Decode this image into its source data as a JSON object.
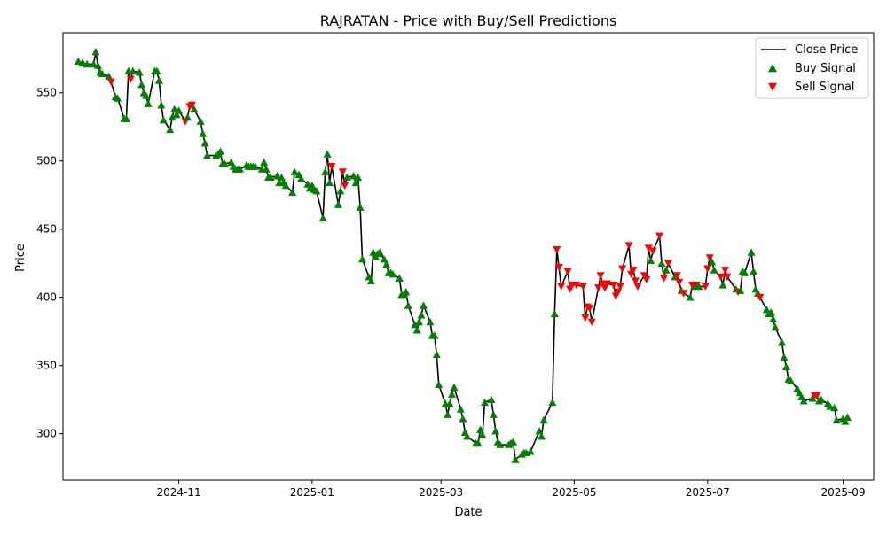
{
  "chart_data": {
    "type": "line",
    "title": "RAJRATAN - Price with Buy/Sell Predictions",
    "xlabel": "Date",
    "ylabel": "Price",
    "xlim": [
      "2024-09-09",
      "2025-09-15"
    ],
    "ylim": [
      266,
      594
    ],
    "x_ticks": [
      {
        "date": "2024-11-01",
        "label": "2024-11"
      },
      {
        "date": "2025-01-01",
        "label": "2025-01"
      },
      {
        "date": "2025-03-01",
        "label": "2025-03"
      },
      {
        "date": "2025-05-01",
        "label": "2025-05"
      },
      {
        "date": "2025-07-01",
        "label": "2025-07"
      },
      {
        "date": "2025-09-01",
        "label": "2025-09"
      }
    ],
    "y_ticks": [
      300,
      350,
      400,
      450,
      500,
      550
    ],
    "grid": false,
    "legend_position": "upper right",
    "series": [
      {
        "name": "Close Price",
        "color": "#000000"
      },
      {
        "name": "Buy Signal",
        "color": "#008000"
      },
      {
        "name": "Sell Signal",
        "color": "#ff0000"
      }
    ],
    "points": [
      [
        "2024-09-16",
        573,
        "B"
      ],
      [
        "2024-09-18",
        572,
        "B"
      ],
      [
        "2024-09-20",
        571,
        "B"
      ],
      [
        "2024-09-23",
        571,
        "B"
      ],
      [
        "2024-09-24",
        580,
        "B"
      ],
      [
        "2024-09-25",
        570,
        "B"
      ],
      [
        "2024-09-26",
        565,
        "B"
      ],
      [
        "2024-09-27",
        564,
        "B"
      ],
      [
        "2024-09-30",
        562,
        "B"
      ],
      [
        "2024-10-01",
        558,
        "S"
      ],
      [
        "2024-10-03",
        547,
        "B"
      ],
      [
        "2024-10-04",
        546,
        "B"
      ],
      [
        "2024-10-07",
        531,
        "B"
      ],
      [
        "2024-10-08",
        531,
        "B"
      ],
      [
        "2024-10-09",
        566,
        "B"
      ],
      [
        "2024-10-10",
        560,
        "S"
      ],
      [
        "2024-10-11",
        566,
        "B"
      ],
      [
        "2024-10-14",
        565,
        "B"
      ],
      [
        "2024-10-15",
        556,
        "B"
      ],
      [
        "2024-10-16",
        550,
        "B"
      ],
      [
        "2024-10-17",
        548,
        "B"
      ],
      [
        "2024-10-18",
        542,
        "B"
      ],
      [
        "2024-10-21",
        566,
        "B"
      ],
      [
        "2024-10-22",
        566,
        "B"
      ],
      [
        "2024-10-23",
        559,
        "B"
      ],
      [
        "2024-10-24",
        541,
        "B"
      ],
      [
        "2024-10-25",
        530,
        "B"
      ],
      [
        "2024-10-28",
        523,
        "B"
      ],
      [
        "2024-10-29",
        532,
        "B"
      ],
      [
        "2024-10-30",
        538,
        "B"
      ],
      [
        "2024-10-31",
        534,
        "B"
      ],
      [
        "2024-11-01",
        537,
        "B"
      ],
      [
        "2024-11-04",
        529,
        "S"
      ],
      [
        "2024-11-05",
        532,
        "B"
      ],
      [
        "2024-11-06",
        540,
        "S"
      ],
      [
        "2024-11-07",
        541,
        "S"
      ],
      [
        "2024-11-08",
        538,
        "B"
      ],
      [
        "2024-11-11",
        529,
        "B"
      ],
      [
        "2024-11-12",
        520,
        "B"
      ],
      [
        "2024-11-13",
        513,
        "B"
      ],
      [
        "2024-11-14",
        504,
        "B"
      ],
      [
        "2024-11-18",
        504,
        "B"
      ],
      [
        "2024-11-19",
        505,
        "B"
      ],
      [
        "2024-11-20",
        507,
        "B"
      ],
      [
        "2024-11-21",
        498,
        "B"
      ],
      [
        "2024-11-22",
        498,
        "B"
      ],
      [
        "2024-11-25",
        499,
        "B"
      ],
      [
        "2024-11-26",
        496,
        "B"
      ],
      [
        "2024-11-27",
        494,
        "B"
      ],
      [
        "2024-11-28",
        494,
        "B"
      ],
      [
        "2024-11-29",
        494,
        "B"
      ],
      [
        "2024-12-02",
        497,
        "B"
      ],
      [
        "2024-12-03",
        496,
        "B"
      ],
      [
        "2024-12-04",
        496,
        "B"
      ],
      [
        "2024-12-05",
        496,
        "B"
      ],
      [
        "2024-12-06",
        496,
        "B"
      ],
      [
        "2024-12-09",
        494,
        "B"
      ],
      [
        "2024-12-10",
        499,
        "B"
      ],
      [
        "2024-12-11",
        494,
        "B"
      ],
      [
        "2024-12-12",
        488,
        "B"
      ],
      [
        "2024-12-13",
        488,
        "B"
      ],
      [
        "2024-12-16",
        489,
        "B"
      ],
      [
        "2024-12-17",
        484,
        "B"
      ],
      [
        "2024-12-18",
        488,
        "B"
      ],
      [
        "2024-12-19",
        484,
        "B"
      ],
      [
        "2024-12-20",
        482,
        "B"
      ],
      [
        "2024-12-23",
        477,
        "B"
      ],
      [
        "2024-12-24",
        492,
        "B"
      ],
      [
        "2024-12-26",
        490,
        "B"
      ],
      [
        "2024-12-27",
        487,
        "B"
      ],
      [
        "2024-12-30",
        483,
        "B"
      ],
      [
        "2024-12-31",
        480,
        "B"
      ],
      [
        "2025-01-01",
        482,
        "B"
      ],
      [
        "2025-01-02",
        479,
        "B"
      ],
      [
        "2025-01-03",
        478,
        "B"
      ],
      [
        "2025-01-06",
        458,
        "B"
      ],
      [
        "2025-01-07",
        492,
        "B"
      ],
      [
        "2025-01-08",
        505,
        "B"
      ],
      [
        "2025-01-09",
        484,
        "B"
      ],
      [
        "2025-01-10",
        496,
        "S"
      ],
      [
        "2025-01-13",
        468,
        "B"
      ],
      [
        "2025-01-14",
        478,
        "B"
      ],
      [
        "2025-01-15",
        492,
        "S"
      ],
      [
        "2025-01-16",
        482,
        "S"
      ],
      [
        "2025-01-17",
        488,
        "B"
      ],
      [
        "2025-01-20",
        489,
        "B"
      ],
      [
        "2025-01-21",
        484,
        "B"
      ],
      [
        "2025-01-22",
        488,
        "B"
      ],
      [
        "2025-01-23",
        466,
        "B"
      ],
      [
        "2025-01-24",
        428,
        "B"
      ],
      [
        "2025-01-27",
        415,
        "B"
      ],
      [
        "2025-01-28",
        412,
        "B"
      ],
      [
        "2025-01-29",
        433,
        "B"
      ],
      [
        "2025-01-30",
        430,
        "B"
      ],
      [
        "2025-01-31",
        432,
        "B"
      ],
      [
        "2025-02-01",
        433,
        "B"
      ],
      [
        "2025-02-03",
        428,
        "B"
      ],
      [
        "2025-02-04",
        424,
        "B"
      ],
      [
        "2025-02-05",
        418,
        "B"
      ],
      [
        "2025-02-06",
        418,
        "B"
      ],
      [
        "2025-02-07",
        417,
        "B"
      ],
      [
        "2025-02-10",
        414,
        "B"
      ],
      [
        "2025-02-11",
        402,
        "B"
      ],
      [
        "2025-02-12",
        402,
        "B"
      ],
      [
        "2025-02-13",
        404,
        "B"
      ],
      [
        "2025-02-14",
        394,
        "B"
      ],
      [
        "2025-02-17",
        380,
        "B"
      ],
      [
        "2025-02-18",
        376,
        "B"
      ],
      [
        "2025-02-19",
        382,
        "B"
      ],
      [
        "2025-02-20",
        387,
        "B"
      ],
      [
        "2025-02-21",
        394,
        "B"
      ],
      [
        "2025-02-24",
        382,
        "B"
      ],
      [
        "2025-02-25",
        372,
        "B"
      ],
      [
        "2025-02-26",
        372,
        "B"
      ],
      [
        "2025-02-27",
        358,
        "B"
      ],
      [
        "2025-02-28",
        336,
        "B"
      ],
      [
        "2025-03-03",
        322,
        "B"
      ],
      [
        "2025-03-04",
        314,
        "B"
      ],
      [
        "2025-03-05",
        322,
        "B"
      ],
      [
        "2025-03-06",
        329,
        "B"
      ],
      [
        "2025-03-07",
        334,
        "B"
      ],
      [
        "2025-03-10",
        318,
        "B"
      ],
      [
        "2025-03-11",
        311,
        "B"
      ],
      [
        "2025-03-12",
        301,
        "B"
      ],
      [
        "2025-03-13",
        298,
        "B"
      ],
      [
        "2025-03-17",
        293,
        "B"
      ],
      [
        "2025-03-18",
        293,
        "B"
      ],
      [
        "2025-03-19",
        303,
        "B"
      ],
      [
        "2025-03-20",
        299,
        "B"
      ],
      [
        "2025-03-21",
        323,
        "B"
      ],
      [
        "2025-03-24",
        325,
        "B"
      ],
      [
        "2025-03-25",
        314,
        "B"
      ],
      [
        "2025-03-26",
        302,
        "B"
      ],
      [
        "2025-03-27",
        294,
        "B"
      ],
      [
        "2025-03-28",
        292,
        "B"
      ],
      [
        "2025-04-01",
        292,
        "B"
      ],
      [
        "2025-04-02",
        293,
        "B"
      ],
      [
        "2025-04-03",
        294,
        "B"
      ],
      [
        "2025-04-04",
        281,
        "B"
      ],
      [
        "2025-04-07",
        285,
        "B"
      ],
      [
        "2025-04-08",
        286,
        "B"
      ],
      [
        "2025-04-09",
        286,
        "B"
      ],
      [
        "2025-04-11",
        287,
        "B"
      ],
      [
        "2025-04-15",
        302,
        "B"
      ],
      [
        "2025-04-16",
        298,
        "B"
      ],
      [
        "2025-04-17",
        310,
        "B"
      ],
      [
        "2025-04-21",
        323,
        "B"
      ],
      [
        "2025-04-22",
        388,
        "B"
      ],
      [
        "2025-04-23",
        435,
        "S"
      ],
      [
        "2025-04-24",
        422,
        "S"
      ],
      [
        "2025-04-25",
        408,
        "S"
      ],
      [
        "2025-04-28",
        419,
        "S"
      ],
      [
        "2025-04-29",
        406,
        "S"
      ],
      [
        "2025-04-30",
        409,
        "S"
      ],
      [
        "2025-05-02",
        409,
        "S"
      ],
      [
        "2025-05-05",
        408,
        "S"
      ],
      [
        "2025-05-06",
        385,
        "S"
      ],
      [
        "2025-05-07",
        393,
        "S"
      ],
      [
        "2025-05-08",
        392,
        "S"
      ],
      [
        "2025-05-09",
        382,
        "S"
      ],
      [
        "2025-05-12",
        407,
        "S"
      ],
      [
        "2025-05-13",
        416,
        "S"
      ],
      [
        "2025-05-14",
        410,
        "S"
      ],
      [
        "2025-05-15",
        407,
        "S"
      ],
      [
        "2025-05-16",
        410,
        "S"
      ],
      [
        "2025-05-19",
        409,
        "S"
      ],
      [
        "2025-05-20",
        401,
        "S"
      ],
      [
        "2025-05-21",
        404,
        "S"
      ],
      [
        "2025-05-22",
        408,
        "S"
      ],
      [
        "2025-05-23",
        421,
        "S"
      ],
      [
        "2025-05-26",
        438,
        "S"
      ],
      [
        "2025-05-27",
        417,
        "S"
      ],
      [
        "2025-05-28",
        420,
        "S"
      ],
      [
        "2025-05-29",
        412,
        "S"
      ],
      [
        "2025-05-30",
        408,
        "S"
      ],
      [
        "2025-06-02",
        416,
        "S"
      ],
      [
        "2025-06-03",
        413,
        "S"
      ],
      [
        "2025-06-04",
        436,
        "S"
      ],
      [
        "2025-06-05",
        427,
        "B"
      ],
      [
        "2025-06-06",
        434,
        "S"
      ],
      [
        "2025-06-09",
        445,
        "S"
      ],
      [
        "2025-06-10",
        425,
        "B"
      ],
      [
        "2025-06-11",
        414,
        "S"
      ],
      [
        "2025-06-12",
        420,
        "B"
      ],
      [
        "2025-06-13",
        425,
        "S"
      ],
      [
        "2025-06-16",
        415,
        "B"
      ],
      [
        "2025-06-17",
        416,
        "S"
      ],
      [
        "2025-06-18",
        411,
        "S"
      ],
      [
        "2025-06-19",
        405,
        "B"
      ],
      [
        "2025-06-20",
        403,
        "S"
      ],
      [
        "2025-06-23",
        400,
        "B"
      ],
      [
        "2025-06-24",
        409,
        "S"
      ],
      [
        "2025-06-25",
        408,
        "B"
      ],
      [
        "2025-06-26",
        409,
        "S"
      ],
      [
        "2025-06-27",
        408,
        "B"
      ],
      [
        "2025-06-30",
        408,
        "S"
      ],
      [
        "2025-07-01",
        421,
        "S"
      ],
      [
        "2025-07-02",
        429,
        "S"
      ],
      [
        "2025-07-03",
        426,
        "B"
      ],
      [
        "2025-07-04",
        420,
        "B"
      ],
      [
        "2025-07-07",
        415,
        "S"
      ],
      [
        "2025-07-08",
        409,
        "B"
      ],
      [
        "2025-07-09",
        420,
        "S"
      ],
      [
        "2025-07-10",
        415,
        "S"
      ],
      [
        "2025-07-14",
        406,
        "B"
      ],
      [
        "2025-07-15",
        404,
        "S"
      ],
      [
        "2025-07-16",
        405,
        "B"
      ],
      [
        "2025-07-17",
        419,
        "B"
      ],
      [
        "2025-07-18",
        418,
        "B"
      ],
      [
        "2025-07-21",
        433,
        "B"
      ],
      [
        "2025-07-22",
        419,
        "B"
      ],
      [
        "2025-07-23",
        406,
        "B"
      ],
      [
        "2025-07-24",
        403,
        "B"
      ],
      [
        "2025-07-25",
        400,
        "S"
      ],
      [
        "2025-07-28",
        391,
        "B"
      ],
      [
        "2025-07-29",
        388,
        "B"
      ],
      [
        "2025-07-30",
        389,
        "B"
      ],
      [
        "2025-07-31",
        384,
        "B"
      ],
      [
        "2025-08-01",
        378,
        "B"
      ],
      [
        "2025-08-04",
        367,
        "B"
      ],
      [
        "2025-08-05",
        356,
        "B"
      ],
      [
        "2025-08-06",
        349,
        "B"
      ],
      [
        "2025-08-07",
        340,
        "B"
      ],
      [
        "2025-08-08",
        339,
        "B"
      ],
      [
        "2025-08-11",
        333,
        "B"
      ],
      [
        "2025-08-12",
        330,
        "B"
      ],
      [
        "2025-08-13",
        327,
        "B"
      ],
      [
        "2025-08-14",
        324,
        "B"
      ],
      [
        "2025-08-18",
        326,
        "B"
      ],
      [
        "2025-08-19",
        328,
        "S"
      ],
      [
        "2025-08-20",
        328,
        "S"
      ],
      [
        "2025-08-21",
        324,
        "B"
      ],
      [
        "2025-08-22",
        325,
        "B"
      ],
      [
        "2025-08-25",
        322,
        "B"
      ],
      [
        "2025-08-26",
        320,
        "B"
      ],
      [
        "2025-08-28",
        319,
        "B"
      ],
      [
        "2025-08-29",
        310,
        "B"
      ],
      [
        "2025-09-01",
        311,
        "B"
      ],
      [
        "2025-09-02",
        309,
        "B"
      ],
      [
        "2025-09-03",
        312,
        "B"
      ]
    ]
  }
}
